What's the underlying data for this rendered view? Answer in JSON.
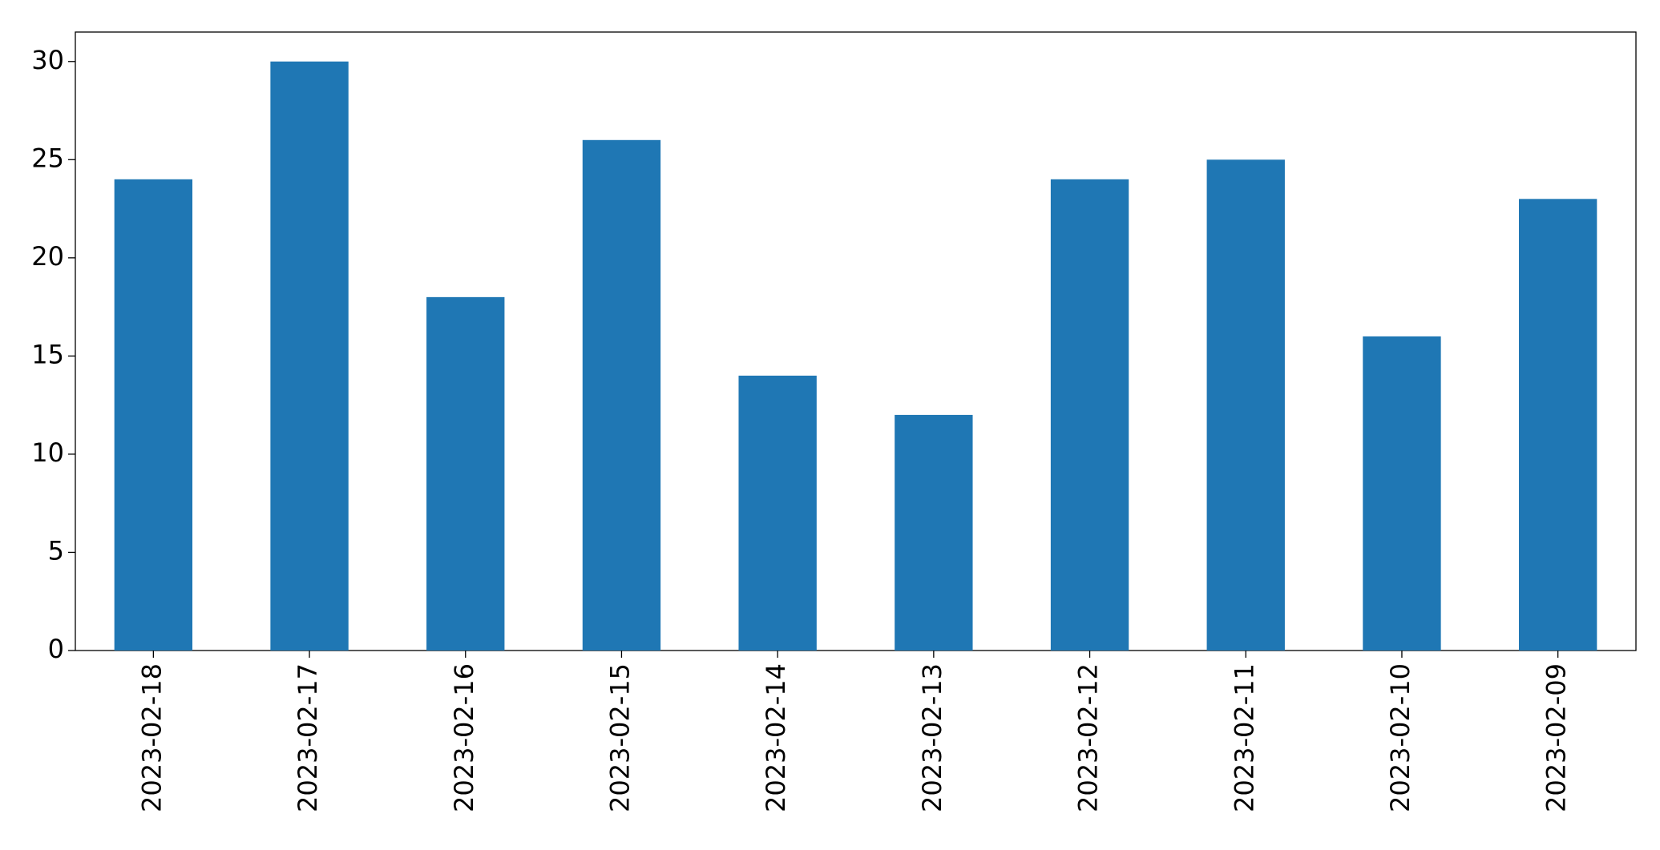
{
  "chart_data": {
    "type": "bar",
    "categories": [
      "2023-02-18",
      "2023-02-17",
      "2023-02-16",
      "2023-02-15",
      "2023-02-14",
      "2023-02-13",
      "2023-02-12",
      "2023-02-11",
      "2023-02-10",
      "2023-02-09"
    ],
    "values": [
      24,
      30,
      18,
      26,
      14,
      12,
      24,
      25,
      16,
      23
    ],
    "color": "#1f77b4",
    "ylim": [
      0,
      31.5
    ],
    "yticks": [
      0,
      5,
      10,
      15,
      20,
      25,
      30
    ],
    "grid": false
  }
}
